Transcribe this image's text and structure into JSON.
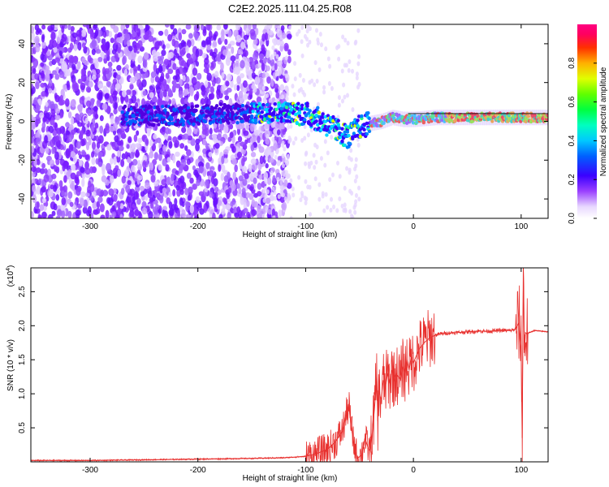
{
  "title": "C2E2.2025.111.04.25.R08",
  "chart_data": [
    {
      "type": "heatmap",
      "xlabel": "Height of straight line (km)",
      "ylabel": "Frequency (Hz)",
      "xlim": [
        -355,
        125
      ],
      "ylim": [
        -50,
        50
      ],
      "xticks": [
        -300,
        -200,
        -100,
        0,
        100
      ],
      "yticks": [
        -40,
        -20,
        0,
        20,
        40
      ],
      "colorbar": {
        "label": "Normalized spectral amplitude",
        "range": [
          0,
          1
        ],
        "ticks": [
          0.0,
          0.2,
          0.4,
          0.6,
          0.8
        ],
        "tick_labels": [
          "0.0",
          "0.2",
          "0.4",
          "0.6",
          "0.8"
        ]
      },
      "ridge": {
        "x": [
          -355,
          -300,
          -260,
          -220,
          -180,
          -150,
          -120,
          -100,
          -85,
          -70,
          -60,
          -50,
          -40,
          -30,
          -20,
          -10,
          0,
          20,
          40,
          60,
          80,
          100,
          125
        ],
        "y": [
          2,
          2,
          3,
          3,
          4,
          4,
          5,
          4,
          0,
          -5,
          -8,
          -3,
          -1,
          0,
          2,
          1,
          1,
          2,
          2,
          2,
          2,
          2,
          2
        ]
      }
    },
    {
      "type": "line",
      "xlabel": "Height of straight line (km)",
      "ylabel": "SNR (10 * v/v)",
      "multiplier_label": "(x10",
      "multiplier_exp": "4",
      "multiplier_close": ")",
      "xlim": [
        -355,
        125
      ],
      "ylim": [
        0,
        2.85
      ],
      "xticks": [
        -300,
        -200,
        -100,
        0,
        100
      ],
      "yticks": [
        0.5,
        1.0,
        1.5,
        2.0,
        2.5
      ],
      "ytick_labels": [
        "0.5",
        "1.0",
        "1.5",
        "2.0",
        "2.5"
      ],
      "color": "#e8312f",
      "series": {
        "x": [
          -355,
          -300,
          -250,
          -200,
          -150,
          -120,
          -100,
          -90,
          -80,
          -72,
          -66,
          -62,
          -60,
          -58,
          -55,
          -52,
          -48,
          -45,
          -42,
          -40,
          -38,
          -36,
          -34,
          -33,
          -32,
          -30,
          -28,
          -26,
          -24,
          -22,
          -20,
          -18,
          -16,
          -14,
          -12,
          -10,
          -8,
          -6,
          -4,
          -2,
          0,
          5,
          10,
          15,
          20,
          25,
          30,
          40,
          50,
          60,
          70,
          80,
          90,
          95,
          98,
          100,
          101,
          102,
          103,
          104,
          105,
          108,
          112,
          118,
          125
        ],
        "y": [
          0.02,
          0.02,
          0.03,
          0.04,
          0.05,
          0.06,
          0.08,
          0.12,
          0.18,
          0.3,
          0.45,
          0.7,
          0.85,
          0.55,
          0.25,
          0.05,
          0.1,
          0.35,
          0.2,
          0.15,
          0.45,
          0.8,
          1.25,
          0.6,
          1.05,
          0.9,
          1.2,
          1.1,
          1.3,
          1.15,
          1.35,
          1.2,
          1.3,
          1.25,
          1.2,
          1.4,
          1.3,
          1.5,
          1.35,
          1.55,
          1.45,
          1.65,
          1.75,
          1.82,
          1.86,
          1.88,
          1.89,
          1.9,
          1.91,
          1.92,
          1.92,
          1.93,
          1.93,
          1.95,
          2.05,
          1.7,
          0.35,
          2.85,
          1.6,
          1.9,
          1.88,
          1.9,
          1.93,
          1.92,
          1.91
        ]
      }
    }
  ]
}
